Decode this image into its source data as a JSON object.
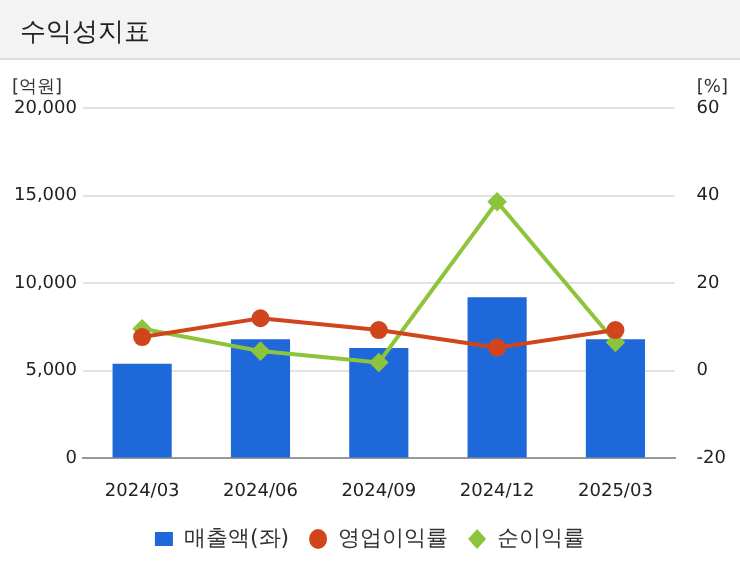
{
  "chart_data": {
    "type": "bar",
    "title": "수익성지표",
    "ylabel": "[억원]",
    "y2label": "[%]",
    "categories": [
      "2024/03",
      "2024/06",
      "2024/09",
      "2024/12",
      "2025/03"
    ],
    "series": [
      {
        "name": "매출액(좌)",
        "color": "#1f68d9",
        "values": [
          5400,
          6800,
          6300,
          9200,
          6800
        ]
      },
      {
        "name": "영업이익률",
        "type": "line",
        "axis": "y2",
        "color": "#d0451b",
        "marker": "circle",
        "values": [
          7.7,
          12,
          9.3,
          5.3,
          9.3
        ]
      },
      {
        "name": "순이익률",
        "type": "line",
        "axis": "y2",
        "color": "#8dc43c",
        "marker": "diamond",
        "values": [
          9.6,
          4.5,
          1.9,
          38.6,
          6.5
        ]
      }
    ],
    "ylim": [
      0,
      20000
    ],
    "yticks": [
      {
        "value": 0,
        "label": "0"
      },
      {
        "value": 5000,
        "label": "5,000"
      },
      {
        "value": 10000,
        "label": "10,000"
      },
      {
        "value": 15000,
        "label": "15,000"
      },
      {
        "value": 20000,
        "label": "20,000"
      }
    ],
    "y2lim": [
      -20,
      60
    ],
    "y2ticks": [
      -20,
      0,
      20,
      40,
      60
    ],
    "grid": "y",
    "legend": "bottom"
  }
}
